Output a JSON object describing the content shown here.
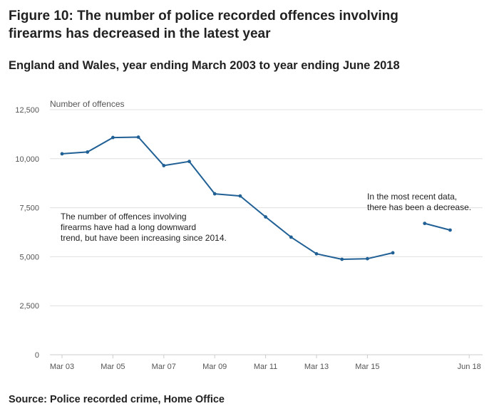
{
  "title": "Figure 10: The number of police recorded offences involving firearms has decreased in the latest year",
  "subtitle": "England and Wales, year ending March 2003 to year ending June 2018",
  "source": "Source: Police recorded crime, Home Office",
  "colors": {
    "line": "#206095",
    "grid": "#e0e0e0",
    "axis": "#cccccc",
    "text": "#555555"
  },
  "chart_data": {
    "type": "line",
    "ylabel": "Number of offences",
    "ylim": [
      0,
      12500
    ],
    "yticks": [
      0,
      2500,
      5000,
      7500,
      10000,
      12500
    ],
    "ytick_labels": [
      "0",
      "2,500",
      "5,000",
      "7,500",
      "10,000",
      "12,500"
    ],
    "xticks": [
      "Mar 03",
      "Mar 05",
      "Mar 07",
      "Mar 09",
      "Mar 11",
      "Mar 13",
      "Mar 15",
      "Jun 18"
    ],
    "xtick_index": [
      0,
      2,
      4,
      6,
      8,
      10,
      12,
      16
    ],
    "grid": true,
    "segments": [
      {
        "x": [
          "Mar 03",
          "Mar 04",
          "Mar 05",
          "Mar 06",
          "Mar 07",
          "Mar 08",
          "Mar 09",
          "Mar 10",
          "Mar 11",
          "Mar 12",
          "Mar 13",
          "Mar 14",
          "Mar 15",
          "Mar 16"
        ],
        "values": [
          10250,
          10340,
          11080,
          11100,
          9650,
          9860,
          8210,
          8100,
          7030,
          6000,
          5150,
          4870,
          4900,
          5200
        ]
      },
      {
        "x": [
          "Jun 17",
          "Jun 18"
        ],
        "values": [
          6700,
          6360
        ]
      }
    ],
    "annotations": [
      {
        "lines": [
          "The number of offences involving",
          "firearms have had a long downward",
          "trend, but have been increasing since 2014."
        ]
      },
      {
        "lines": [
          "In the most recent data,",
          "there has been a decrease."
        ]
      }
    ]
  }
}
